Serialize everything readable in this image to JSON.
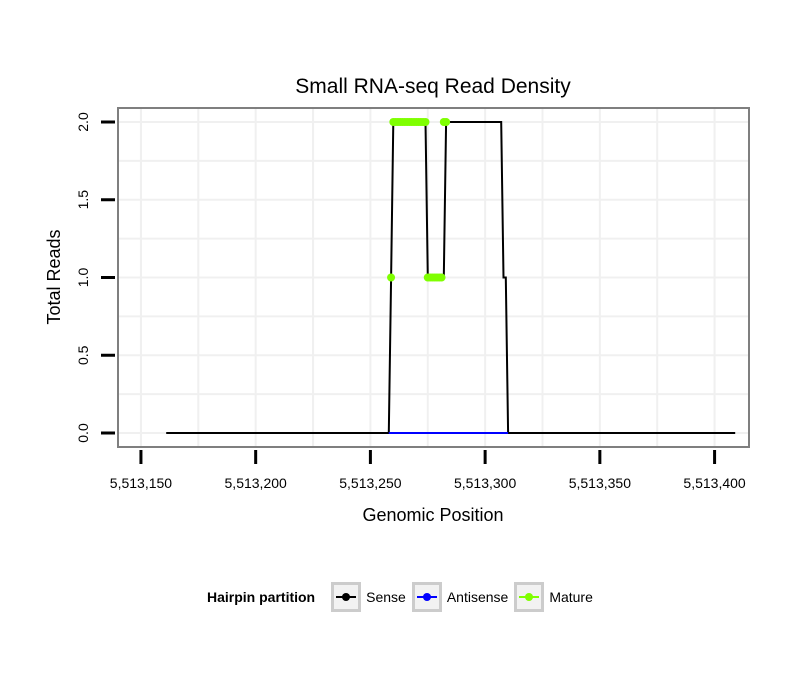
{
  "chart_data": {
    "type": "line",
    "title": "Small RNA-seq Read Density",
    "xlabel": "Genomic Position",
    "ylabel": "Total Reads",
    "xlim": [
      5513140,
      5513415
    ],
    "ylim": [
      -0.09,
      2.09
    ],
    "x_ticks": [
      5513150,
      5513200,
      5513250,
      5513300,
      5513350,
      5513400
    ],
    "x_tick_labels": [
      "5,513,150",
      "5,513,200",
      "5,513,250",
      "5,513,300",
      "5,513,350",
      "5,513,400"
    ],
    "y_ticks": [
      0,
      0.5,
      1,
      1.5,
      2
    ],
    "y_tick_labels": [
      "0.0",
      "0.5",
      "1.0",
      "1.5",
      "2.0"
    ],
    "grid": true,
    "legend_position": "bottom",
    "legend_title": "Hairpin partition",
    "series": [
      {
        "name": "Sense",
        "color": "#000000",
        "x": [
          5513161,
          5513258,
          5513259,
          5513260,
          5513273,
          5513274,
          5513275,
          5513282,
          5513283,
          5513307,
          5513308,
          5513309,
          5513310,
          5513409
        ],
        "y": [
          0,
          0,
          1,
          2,
          2,
          2,
          1,
          1,
          2,
          2,
          1,
          1,
          0,
          0
        ]
      },
      {
        "name": "Antisense",
        "color": "#0000ff",
        "x": [
          5513258,
          5513310
        ],
        "y": [
          0,
          0
        ]
      },
      {
        "name": "Mature",
        "color": "#7fff00",
        "x": [
          5513259,
          5513260,
          5513261,
          5513262,
          5513263,
          5513264,
          5513265,
          5513266,
          5513267,
          5513268,
          5513269,
          5513270,
          5513271,
          5513272,
          5513273,
          5513274,
          5513275,
          5513276,
          5513277,
          5513278,
          5513279,
          5513280,
          5513281,
          5513282,
          5513283
        ],
        "y": [
          1,
          2,
          2,
          2,
          2,
          2,
          2,
          2,
          2,
          2,
          2,
          2,
          2,
          2,
          2,
          2,
          1,
          1,
          1,
          1,
          1,
          1,
          1,
          2,
          2
        ]
      }
    ]
  }
}
